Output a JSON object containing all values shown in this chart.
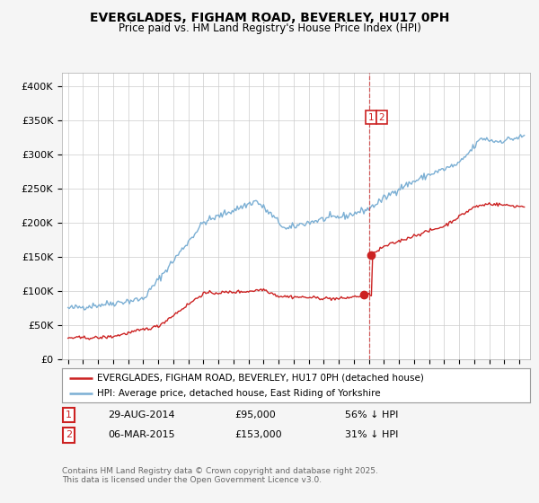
{
  "title": "EVERGLADES, FIGHAM ROAD, BEVERLEY, HU17 0PH",
  "subtitle": "Price paid vs. HM Land Registry's House Price Index (HPI)",
  "legend_line1": "EVERGLADES, FIGHAM ROAD, BEVERLEY, HU17 0PH (detached house)",
  "legend_line2": "HPI: Average price, detached house, East Riding of Yorkshire",
  "footer": "Contains HM Land Registry data © Crown copyright and database right 2025.\nThis data is licensed under the Open Government Licence v3.0.",
  "hpi_color": "#7bafd4",
  "price_color": "#cc2222",
  "background_color": "#f5f5f5",
  "plot_bg_color": "#ffffff",
  "ylim": [
    0,
    420000
  ],
  "ylabel_ticks": [
    0,
    50000,
    100000,
    150000,
    200000,
    250000,
    300000,
    350000,
    400000
  ],
  "ylabel_labels": [
    "£0",
    "£50K",
    "£100K",
    "£150K",
    "£200K",
    "£250K",
    "£300K",
    "£350K",
    "£400K"
  ],
  "t1": 2014.667,
  "t2": 2015.167,
  "p1": 95000,
  "p2": 153000,
  "vline_x": 2015.0,
  "ann1_date": "29-AUG-2014",
  "ann1_price": "£95,000",
  "ann1_pct": "56% ↓ HPI",
  "ann2_date": "06-MAR-2015",
  "ann2_price": "£153,000",
  "ann2_pct": "31% ↓ HPI"
}
